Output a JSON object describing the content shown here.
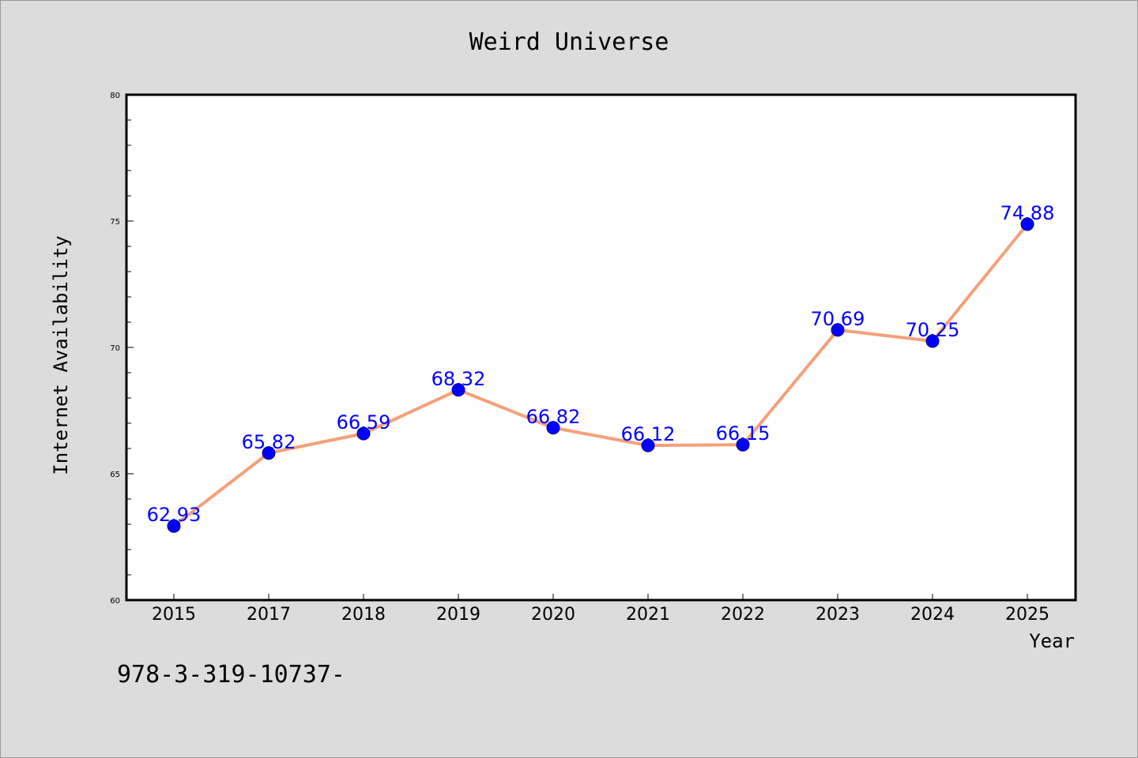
{
  "chart_data": {
    "type": "line",
    "title": "Weird Universe",
    "xlabel": "Year",
    "ylabel": "Internet Availability",
    "categories": [
      "2015",
      "2017",
      "2018",
      "2019",
      "2020",
      "2021",
      "2022",
      "2023",
      "2024",
      "2025"
    ],
    "series": [
      {
        "values": [
          62.93,
          65.82,
          66.59,
          68.32,
          66.82,
          66.12,
          66.15,
          70.69,
          70.25,
          74.88
        ],
        "line_color": "#f4a07a",
        "marker_color": "#0000ff"
      }
    ],
    "data_labels": [
      "62.93",
      "65.82",
      "66.59",
      "68.32",
      "66.82",
      "66.12",
      "66.15",
      "70.69",
      "70.25",
      "74.88"
    ],
    "ylim": [
      60,
      80
    ],
    "yticks": [
      "60",
      "65",
      "70",
      "75",
      "80"
    ],
    "grid": false,
    "label_color": "#0000ff"
  },
  "footnote": "978-3-319-10737-"
}
